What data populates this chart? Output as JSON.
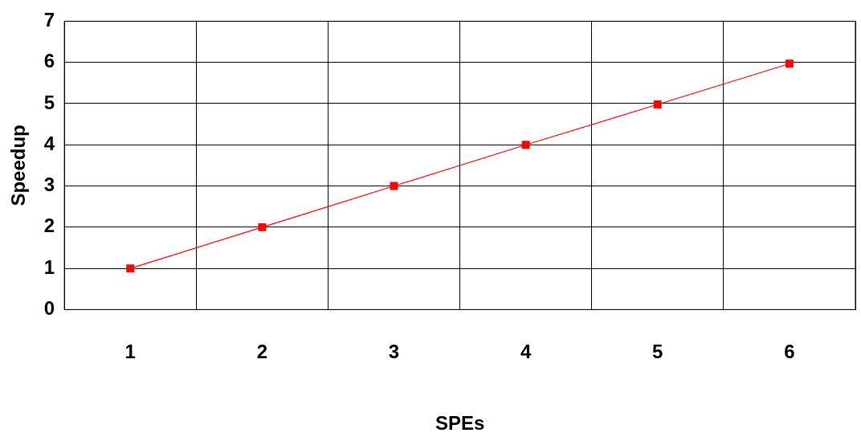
{
  "chart_data": {
    "type": "line",
    "xlabel": "SPEs",
    "ylabel": "Speedup",
    "categories": [
      "1",
      "2",
      "3",
      "4",
      "5",
      "6"
    ],
    "series": [
      {
        "color": "#ff0000",
        "values": [
          1,
          2,
          3,
          4,
          4.98,
          5.97
        ]
      }
    ],
    "ylim": [
      0,
      7
    ],
    "yticks": [
      0,
      1,
      2,
      3,
      4,
      5,
      6,
      7
    ],
    "grid": true,
    "legend": false,
    "marker": "square",
    "line_style": "solid"
  }
}
